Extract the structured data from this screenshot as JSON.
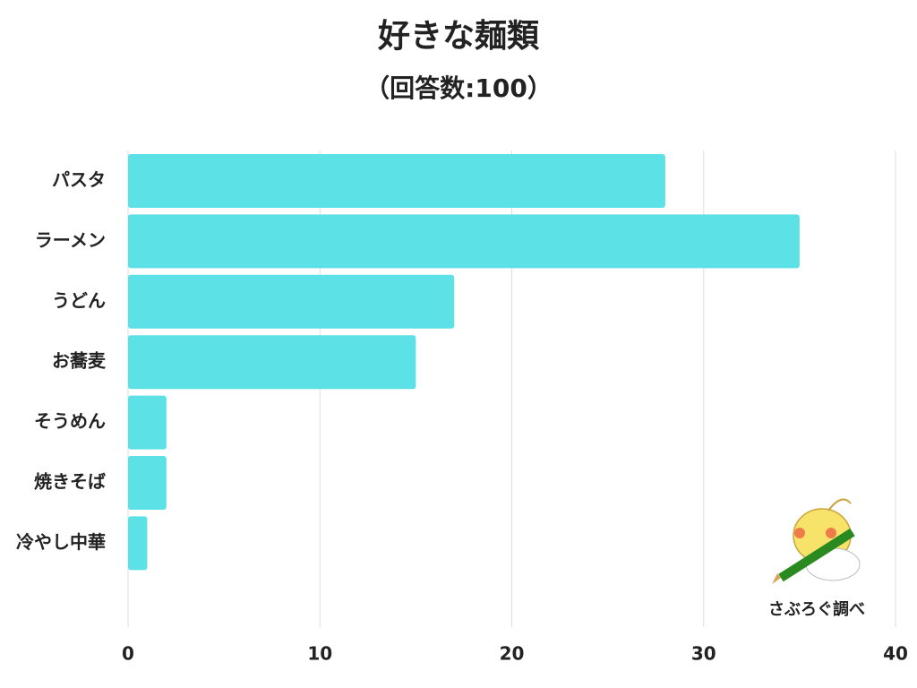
{
  "chart_data": {
    "type": "bar",
    "orientation": "horizontal",
    "title": "好きな麺類",
    "subtitle": "（回答数:100）",
    "categories": [
      "パスタ",
      "ラーメン",
      "うどん",
      "お蕎麦",
      "そうめん",
      "焼きそば",
      "冷やし中華"
    ],
    "values": [
      28,
      35,
      17,
      15,
      2,
      2,
      1
    ],
    "color": "#5ce1e6",
    "xlim": [
      0,
      40
    ],
    "xticks": [
      0,
      10,
      20,
      30,
      40
    ],
    "grid": true,
    "annotation": "さぶろぐ調べ"
  }
}
